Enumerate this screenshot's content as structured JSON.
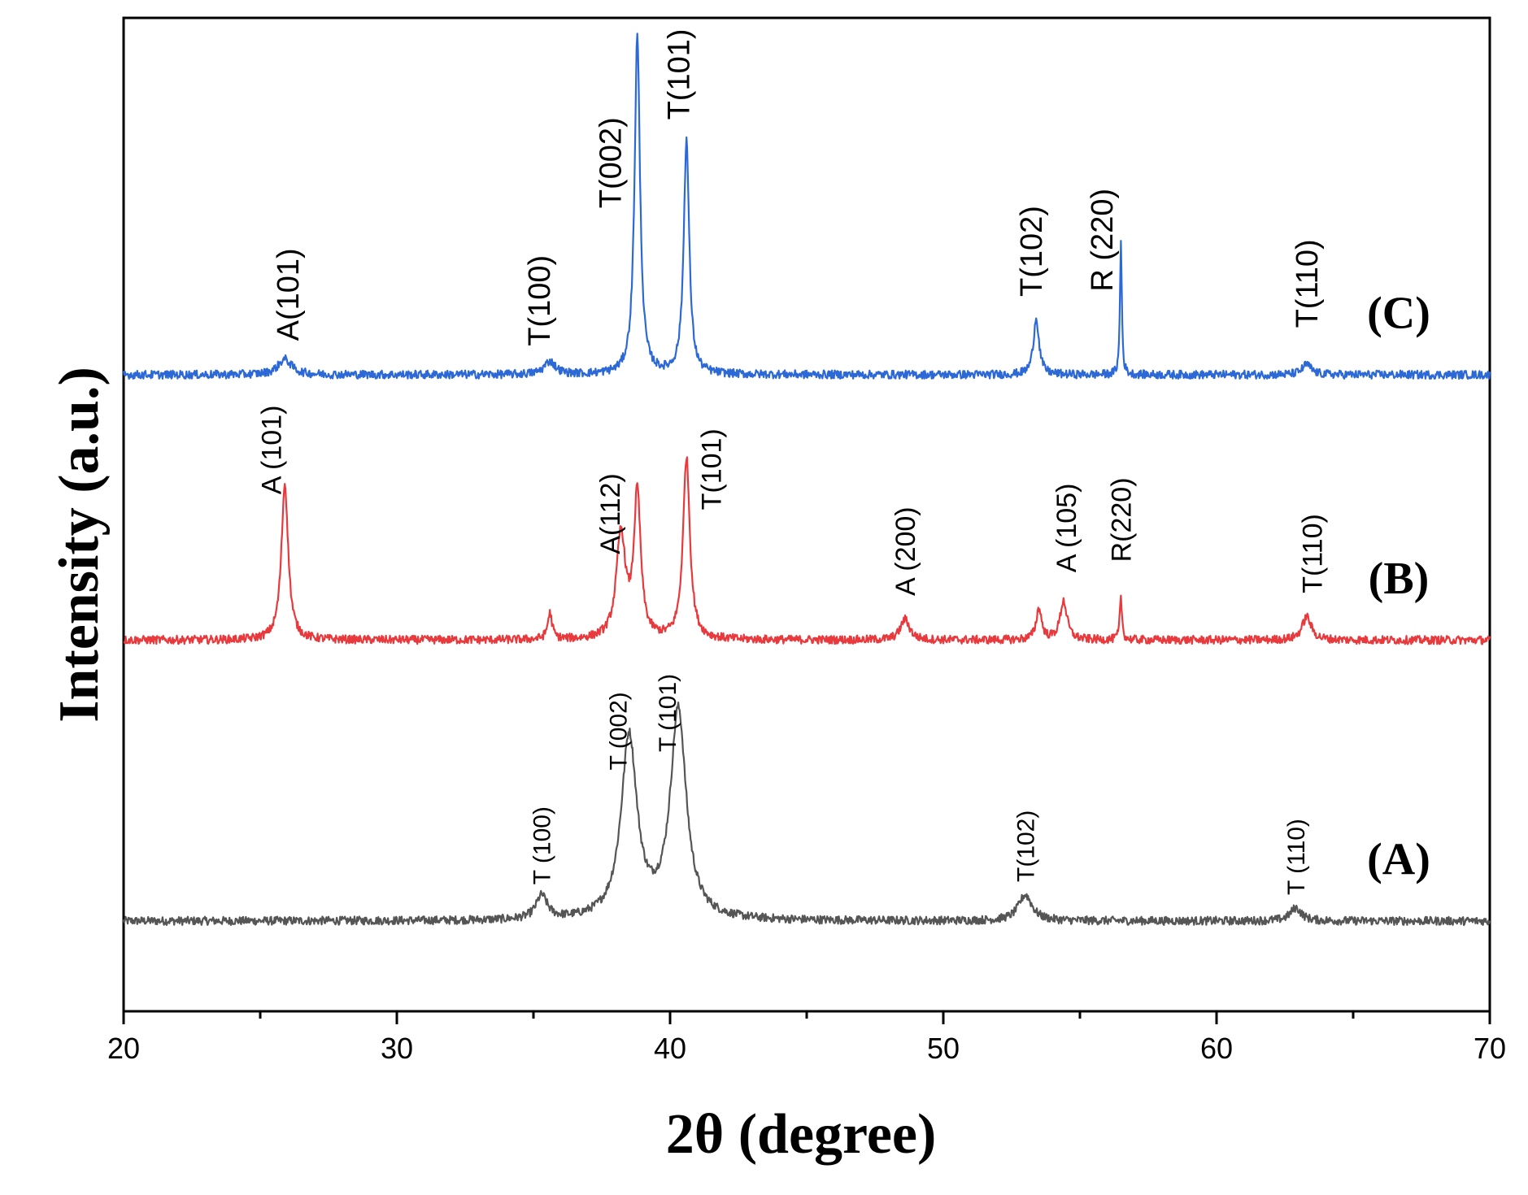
{
  "chart_data": {
    "type": "line",
    "xlabel": "2θ (degree)",
    "ylabel": "Intensity (a.u.)",
    "xlim": [
      20,
      70
    ],
    "xticks": [
      20,
      30,
      40,
      50,
      60,
      70
    ],
    "yticks_shown": false,
    "grid": false,
    "series": [
      {
        "name": "(A)",
        "color": "#555555",
        "baseline": 0,
        "peaks": [
          {
            "x": 35.3,
            "height": 9,
            "width": 0.25
          },
          {
            "x": 38.5,
            "height": 70,
            "width": 0.35
          },
          {
            "x": 40.3,
            "height": 80,
            "width": 0.35
          },
          {
            "x": 53.0,
            "height": 10,
            "width": 0.3
          },
          {
            "x": 62.9,
            "height": 5,
            "width": 0.25
          }
        ],
        "labels": [
          {
            "text": "T (100)",
            "x": 35.3,
            "y": 14
          },
          {
            "text": "T (002)",
            "x": 38.1,
            "y": 58
          },
          {
            "text": "T (101)",
            "x": 39.9,
            "y": 65
          },
          {
            "text": "T(102)",
            "x": 53.0,
            "y": 15
          },
          {
            "text": "T (110)",
            "x": 62.9,
            "y": 10
          }
        ]
      },
      {
        "name": "(B)",
        "color": "#e8393d",
        "baseline": 108,
        "peaks": [
          {
            "x": 25.9,
            "height": 60,
            "width": 0.15
          },
          {
            "x": 35.6,
            "height": 10,
            "width": 0.1
          },
          {
            "x": 38.2,
            "height": 40,
            "width": 0.2
          },
          {
            "x": 38.8,
            "height": 55,
            "width": 0.15
          },
          {
            "x": 40.6,
            "height": 70,
            "width": 0.15
          },
          {
            "x": 48.6,
            "height": 8,
            "width": 0.2
          },
          {
            "x": 53.5,
            "height": 12,
            "width": 0.12
          },
          {
            "x": 54.4,
            "height": 15,
            "width": 0.15
          },
          {
            "x": 56.5,
            "height": 16,
            "width": 0.05
          },
          {
            "x": 63.3,
            "height": 9,
            "width": 0.2
          }
        ],
        "labels": [
          {
            "text": "A (101)",
            "x": 25.4,
            "y": 56
          },
          {
            "text": "A(112)",
            "x": 37.8,
            "y": 33
          },
          {
            "text": "T(101)",
            "x": 41.5,
            "y": 50
          },
          {
            "text": "A (200)",
            "x": 48.6,
            "y": 17
          },
          {
            "text": "A (105)",
            "x": 54.5,
            "y": 26
          },
          {
            "text": "R(220)",
            "x": 56.5,
            "y": 30
          },
          {
            "text": "T(110)",
            "x": 63.5,
            "y": 18
          }
        ]
      },
      {
        "name": "(C)",
        "color": "#2c69d6",
        "baseline": 210,
        "peaks": [
          {
            "x": 25.9,
            "height": 6,
            "width": 0.3
          },
          {
            "x": 35.6,
            "height": 5,
            "width": 0.25
          },
          {
            "x": 38.8,
            "height": 130,
            "width": 0.12
          },
          {
            "x": 40.6,
            "height": 90,
            "width": 0.12
          },
          {
            "x": 53.4,
            "height": 22,
            "width": 0.12
          },
          {
            "x": 56.5,
            "height": 52,
            "width": 0.04
          },
          {
            "x": 63.3,
            "height": 4,
            "width": 0.2
          }
        ],
        "labels": [
          {
            "text": "A(101)",
            "x": 26.0,
            "y": 13
          },
          {
            "text": "T(100)",
            "x": 35.2,
            "y": 11
          },
          {
            "text": "T(002)",
            "x": 37.8,
            "y": 64
          },
          {
            "text": "T(101)",
            "x": 40.3,
            "y": 98
          },
          {
            "text": "T(102)",
            "x": 53.2,
            "y": 30
          },
          {
            "text": "R (220)",
            "x": 55.8,
            "y": 32
          },
          {
            "text": "T(110)",
            "x": 63.3,
            "y": 18
          }
        ]
      }
    ]
  }
}
